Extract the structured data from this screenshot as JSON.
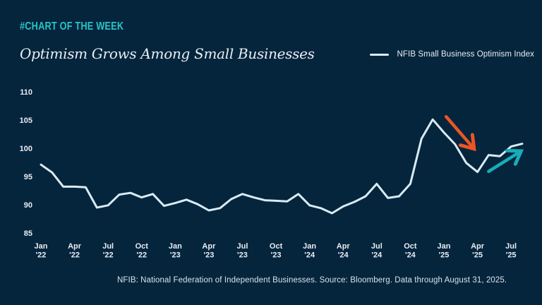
{
  "header": {
    "kicker": "#CHART OF THE WEEK"
  },
  "title": "Optimism Grows Among Small Businesses",
  "legend": {
    "label": "NFIB Small Business Optimism Index"
  },
  "footer": {
    "source_note": "NFIB: National Federation of Independent Businesses. Source: Bloomberg. Data through August 31, 2025."
  },
  "colors": {
    "background": "#05253D",
    "kicker": "#29C3C6",
    "line": "#D9EBF2",
    "arrow_down": "#ED5523",
    "arrow_up": "#16AEB8",
    "text": "#E8EEF2"
  },
  "chart_data": {
    "type": "line",
    "title": "Optimism Grows Among Small Businesses",
    "x_start": "Jan 2022",
    "x_frequency": "monthly",
    "series": [
      {
        "name": "NFIB Small Business Optimism Index",
        "values": [
          97.1,
          95.7,
          93.2,
          93.2,
          93.1,
          89.5,
          89.9,
          91.8,
          92.1,
          91.3,
          91.9,
          89.8,
          90.3,
          90.9,
          90.1,
          89.0,
          89.4,
          91.0,
          91.9,
          91.3,
          90.8,
          90.7,
          90.6,
          91.9,
          89.9,
          89.4,
          88.5,
          89.7,
          90.5,
          91.5,
          93.7,
          91.2,
          91.5,
          93.7,
          101.7,
          105.1,
          102.8,
          100.7,
          97.4,
          95.8,
          98.8,
          98.6,
          100.3,
          100.8
        ]
      }
    ],
    "x_ticks": [
      {
        "month": "Jan",
        "year": "'22"
      },
      {
        "month": "Apr",
        "year": "'22"
      },
      {
        "month": "Jul",
        "year": "'22"
      },
      {
        "month": "Oct",
        "year": "'22"
      },
      {
        "month": "Jan",
        "year": "'23"
      },
      {
        "month": "Apr",
        "year": "'23"
      },
      {
        "month": "Jul",
        "year": "'23"
      },
      {
        "month": "Oct",
        "year": "'23"
      },
      {
        "month": "Jan",
        "year": "'24"
      },
      {
        "month": "Apr",
        "year": "'24"
      },
      {
        "month": "Jul",
        "year": "'24"
      },
      {
        "month": "Oct",
        "year": "'24"
      },
      {
        "month": "Jan",
        "year": "'25"
      },
      {
        "month": "Apr",
        "year": "'25"
      },
      {
        "month": "Jul",
        "year": "'25"
      }
    ],
    "x_tick_interval_months": 3,
    "y_ticks": [
      110,
      105,
      100,
      95,
      90,
      85
    ],
    "ylim": [
      85,
      110
    ],
    "grid": false,
    "legend_position": "top-right",
    "annotations": [
      {
        "type": "arrow",
        "direction": "down",
        "color": "#ED5523",
        "from": {
          "x": 36.2,
          "y": 105.6
        },
        "to": {
          "x": 38.7,
          "y": 99.9
        }
      },
      {
        "type": "arrow",
        "direction": "up",
        "color": "#16AEB8",
        "from": {
          "x": 40.0,
          "y": 95.9
        },
        "to": {
          "x": 42.9,
          "y": 99.5
        }
      }
    ]
  }
}
